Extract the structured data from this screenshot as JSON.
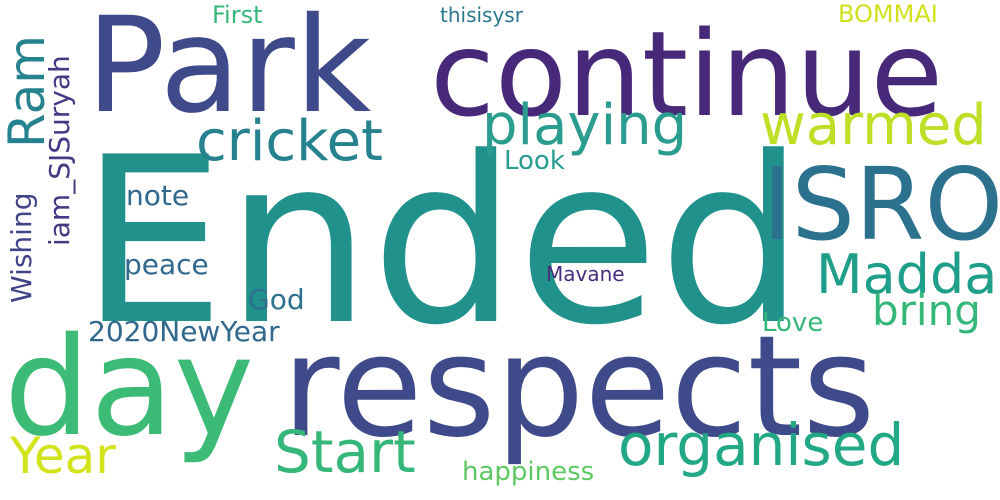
{
  "words": [
    {
      "key": "ended",
      "text": "Ended",
      "color": "#21918c"
    },
    {
      "key": "park",
      "text": "Park",
      "color": "#3e4a89"
    },
    {
      "key": "continue",
      "text": "continue",
      "color": "#482878"
    },
    {
      "key": "respects",
      "text": "respects",
      "color": "#3e4a89"
    },
    {
      "key": "day",
      "text": "day",
      "color": "#3bbb75"
    },
    {
      "key": "isro",
      "text": "ISRO",
      "color": "#2c728e"
    },
    {
      "key": "cricket",
      "text": "cricket",
      "color": "#26828e"
    },
    {
      "key": "playing",
      "text": "playing",
      "color": "#2a9d8f"
    },
    {
      "key": "warmed",
      "text": "warmed",
      "color": "#bddf26"
    },
    {
      "key": "ram",
      "text": "Ram",
      "color": "#26828e"
    },
    {
      "key": "madda",
      "text": "Madda",
      "color": "#1f9e89"
    },
    {
      "key": "organised",
      "text": "organised",
      "color": "#22a884"
    },
    {
      "key": "start",
      "text": "Start",
      "color": "#35b779"
    },
    {
      "key": "year",
      "text": "Year",
      "color": "#d2e21b"
    },
    {
      "key": "bring",
      "text": "bring",
      "color": "#35b779"
    },
    {
      "key": "note",
      "text": "note",
      "color": "#31688e"
    },
    {
      "key": "peace",
      "text": "peace",
      "color": "#31688e"
    },
    {
      "key": "god",
      "text": "God",
      "color": "#2d708e"
    },
    {
      "key": "newyear",
      "text": "2020NewYear",
      "color": "#31688e"
    },
    {
      "key": "love",
      "text": "Love",
      "color": "#35b779"
    },
    {
      "key": "happiness",
      "text": "happiness",
      "color": "#5ec962"
    },
    {
      "key": "look",
      "text": "Look",
      "color": "#2a9d8f"
    },
    {
      "key": "mavane",
      "text": "Mavane",
      "color": "#472d7b"
    },
    {
      "key": "first",
      "text": "First",
      "color": "#35b779"
    },
    {
      "key": "thisisysr",
      "text": "thisisysr",
      "color": "#2a788e"
    },
    {
      "key": "bommai",
      "text": "BOMMAI",
      "color": "#d0e11c"
    },
    {
      "key": "iam_sjsuryah",
      "text": "iam_SJSuryah",
      "color": "#443983"
    },
    {
      "key": "wishing",
      "text": "Wishing",
      "color": "#414487"
    }
  ]
}
